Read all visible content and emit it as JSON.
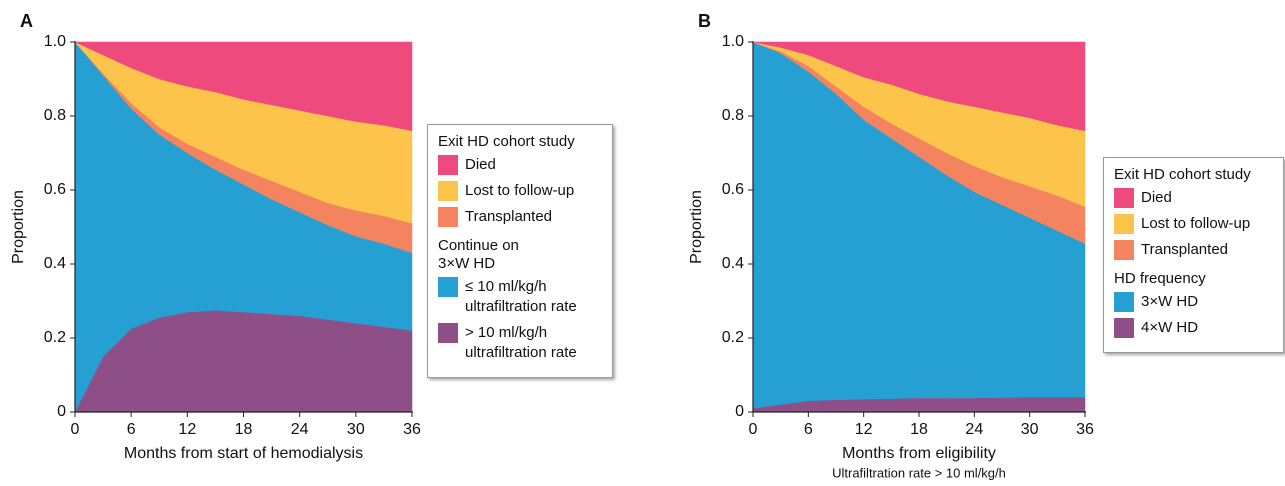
{
  "chart_data": [
    {
      "type": "area",
      "panel_label": "A",
      "ylabel": "Proportion",
      "xlabel": "Months from start of hemodialysis",
      "x": [
        0,
        3,
        6,
        9,
        12,
        15,
        18,
        21,
        24,
        27,
        30,
        33,
        36
      ],
      "xlim": [
        0,
        36
      ],
      "xticks": [
        0,
        6,
        12,
        18,
        24,
        30,
        36
      ],
      "ylim": [
        0,
        1
      ],
      "yticks": [
        0,
        0.2,
        0.4,
        0.6,
        0.8,
        {
          "value": 1,
          "label": "1.0"
        }
      ],
      "stacked": true,
      "groups": [
        {
          "title": [
            "Exit HD cohort study"
          ],
          "series": [
            {
              "name": "Died",
              "color": "#ef4a7e",
              "values": [
                0,
                0.035,
                0.07,
                0.1,
                0.12,
                0.135,
                0.155,
                0.17,
                0.185,
                0.2,
                0.215,
                0.225,
                0.24
              ]
            },
            {
              "name": "Lost to follow-up",
              "color": "#fcc44a",
              "values": [
                0,
                0.05,
                0.095,
                0.13,
                0.155,
                0.175,
                0.19,
                0.205,
                0.22,
                0.235,
                0.24,
                0.245,
                0.25
              ]
            },
            {
              "name": "Transplanted",
              "color": "#f4845f",
              "values": [
                0,
                0.005,
                0.015,
                0.02,
                0.025,
                0.035,
                0.04,
                0.05,
                0.055,
                0.06,
                0.07,
                0.075,
                0.08
              ]
            }
          ]
        },
        {
          "title": [
            "Continue on",
            "3×W HD"
          ],
          "series": [
            {
              "name": "≤ 10 ml/kg/h ultrafiltration rate",
              "color": "#26a0d2",
              "values": [
                1,
                0.76,
                0.595,
                0.495,
                0.43,
                0.38,
                0.345,
                0.31,
                0.28,
                0.255,
                0.235,
                0.225,
                0.21
              ]
            },
            {
              "name": "> 10 ml/kg/h ultrafiltration rate",
              "color": "#8e4e87",
              "values": [
                0,
                0.15,
                0.225,
                0.255,
                0.27,
                0.275,
                0.27,
                0.265,
                0.26,
                0.25,
                0.24,
                0.23,
                0.22
              ]
            }
          ]
        }
      ]
    },
    {
      "type": "area",
      "panel_label": "B",
      "ylabel": "Proportion",
      "xlabel": "Months from eligibility",
      "subtitle": "Ultrafiltration rate > 10 ml/kg/h",
      "x": [
        0,
        3,
        6,
        9,
        12,
        15,
        18,
        21,
        24,
        27,
        30,
        33,
        36
      ],
      "xlim": [
        0,
        36
      ],
      "xticks": [
        0,
        6,
        12,
        18,
        24,
        30,
        36
      ],
      "ylim": [
        0,
        1
      ],
      "yticks": [
        0,
        0.2,
        0.4,
        0.6,
        0.8,
        {
          "value": 1,
          "label": "1.0"
        }
      ],
      "stacked": true,
      "groups": [
        {
          "title": [
            "Exit HD cohort study"
          ],
          "series": [
            {
              "name": "Died",
              "color": "#ef4a7e",
              "values": [
                0,
                0.015,
                0.035,
                0.065,
                0.095,
                0.115,
                0.14,
                0.16,
                0.175,
                0.19,
                0.205,
                0.225,
                0.24
              ]
            },
            {
              "name": "Lost to follow-up",
              "color": "#fcc44a",
              "values": [
                0,
                0.01,
                0.03,
                0.055,
                0.08,
                0.105,
                0.12,
                0.14,
                0.16,
                0.175,
                0.185,
                0.19,
                0.205
              ]
            },
            {
              "name": "Transplanted",
              "color": "#f4845f",
              "values": [
                0,
                0.005,
                0.015,
                0.02,
                0.035,
                0.04,
                0.05,
                0.06,
                0.07,
                0.075,
                0.085,
                0.095,
                0.1
              ]
            }
          ]
        },
        {
          "title": [
            "HD frequency"
          ],
          "series": [
            {
              "name": "3×W HD",
              "color": "#26a0d2",
              "values": [
                0.99,
                0.95,
                0.89,
                0.827,
                0.755,
                0.704,
                0.652,
                0.602,
                0.557,
                0.521,
                0.485,
                0.45,
                0.415
              ]
            },
            {
              "name": "4×W HD",
              "color": "#8e4e87",
              "values": [
                0.01,
                0.02,
                0.03,
                0.033,
                0.035,
                0.036,
                0.038,
                0.038,
                0.038,
                0.039,
                0.04,
                0.04,
                0.04
              ]
            }
          ]
        }
      ]
    }
  ]
}
